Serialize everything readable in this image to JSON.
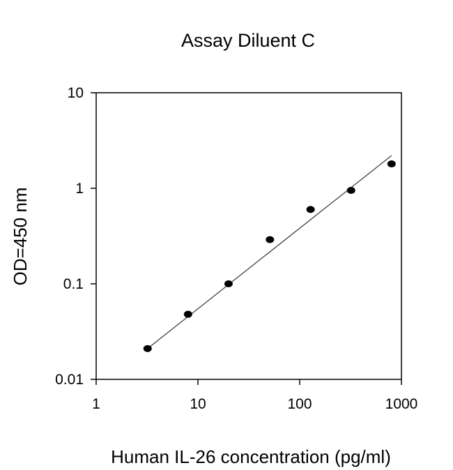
{
  "chart_data": {
    "type": "scatter",
    "title": "Assay Diluent C",
    "xlabel": "Human IL-26 concentration (pg/ml)",
    "ylabel": "OD=450 nm",
    "xscale": "log",
    "yscale": "log",
    "xlim": [
      1,
      1000
    ],
    "ylim": [
      0.01,
      10
    ],
    "xticks": [
      1,
      10,
      100,
      1000
    ],
    "xtick_labels": [
      "1",
      "10",
      "100",
      "1000"
    ],
    "yticks": [
      0.01,
      0.1,
      1,
      10
    ],
    "ytick_labels": [
      "0.01",
      "0.1",
      "1",
      "10"
    ],
    "grid": false,
    "legend": "none",
    "points": [
      {
        "x": 3.2,
        "y": 0.021
      },
      {
        "x": 8,
        "y": 0.048
      },
      {
        "x": 20,
        "y": 0.1
      },
      {
        "x": 51,
        "y": 0.29
      },
      {
        "x": 128,
        "y": 0.6
      },
      {
        "x": 320,
        "y": 0.95
      },
      {
        "x": 800,
        "y": 1.8
      }
    ],
    "fit_line": {
      "x": [
        3.2,
        800
      ],
      "y": [
        0.021,
        2.2
      ]
    },
    "colors": {
      "points": "#000000",
      "line": "#333333",
      "axes": "#000000"
    }
  }
}
